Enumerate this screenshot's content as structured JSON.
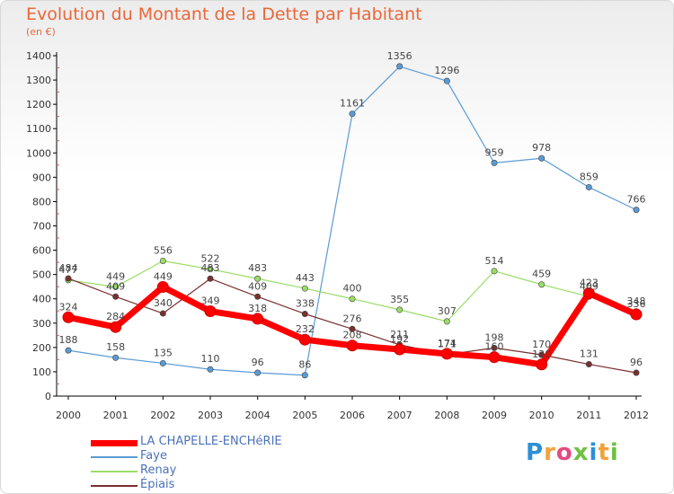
{
  "header": {
    "title": "Evolution du Montant de la Dette par Habitant",
    "subtitle": "(en €)"
  },
  "logo": {
    "text": "Proxiti",
    "letters": [
      "P",
      "r",
      "o",
      "x",
      "i",
      "t",
      "i"
    ]
  },
  "chart_data": {
    "type": "line",
    "title": "Evolution du Montant de la Dette par Habitant",
    "subtitle": "(en €)",
    "xlabel": "",
    "ylabel": "",
    "x": [
      "2000",
      "2001",
      "2002",
      "2003",
      "2004",
      "2005",
      "2006",
      "2007",
      "2008",
      "2009",
      "2010",
      "2011",
      "2012"
    ],
    "ylim": [
      0,
      1400
    ],
    "yticks": [
      "0",
      "100",
      "200",
      "300",
      "400",
      "500",
      "600",
      "700",
      "800",
      "900",
      "1000",
      "1100",
      "1200",
      "1300",
      "1400"
    ],
    "grid": false,
    "legend_position": "bottom-left",
    "series": [
      {
        "name": "LA CHAPELLE-ENCHéRIE",
        "color": "#ff0000",
        "values": [
          324,
          284,
          449,
          349,
          318,
          232,
          208,
          192,
          174,
          160,
          130,
          423,
          336
        ],
        "labels": [
          "324",
          "284",
          "449",
          "349",
          "318",
          "232",
          "208",
          "192",
          "174",
          "160",
          "130",
          "423",
          "336"
        ]
      },
      {
        "name": "Faye",
        "color": "#5b9bd5",
        "values": [
          188,
          158,
          135,
          110,
          96,
          86,
          1161,
          1356,
          1296,
          959,
          978,
          859,
          766
        ],
        "labels": [
          "188",
          "158",
          "135",
          "110",
          "96",
          "86",
          "1161",
          "1356",
          "1296",
          "959",
          "978",
          "859",
          "766"
        ]
      },
      {
        "name": "Renay",
        "color": "#99dd66",
        "values": [
          477,
          449,
          556,
          522,
          483,
          443,
          400,
          355,
          307,
          514,
          459,
          409,
          348
        ],
        "labels": [
          "477",
          "449",
          "556",
          "522",
          "483",
          "443",
          "400",
          "355",
          "307",
          "514",
          "459",
          "409",
          "348"
        ]
      },
      {
        "name": "Épiais",
        "color": "#7a2f2f",
        "values": [
          484,
          409,
          340,
          483,
          409,
          338,
          276,
          211,
          171,
          198,
          170,
          131,
          96
        ],
        "labels": [
          "484",
          "409",
          "340",
          "483",
          "409",
          "338",
          "276",
          "211",
          "171",
          "198",
          "170",
          "131",
          "96"
        ]
      }
    ]
  }
}
